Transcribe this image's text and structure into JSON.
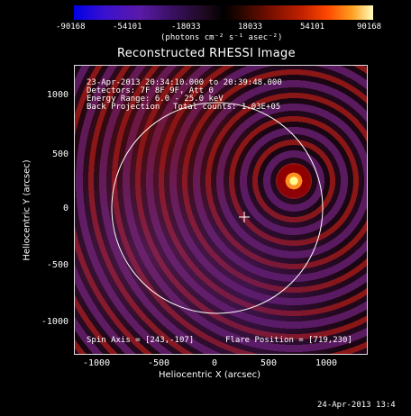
{
  "colorbar": {
    "ticks": [
      "-90168",
      "-54101",
      "-18033",
      "18033",
      "54101",
      "90168"
    ],
    "units": "(photons cm⁻² s⁻¹ asec⁻²)"
  },
  "plot": {
    "title": "Reconstructed RHESSI Image",
    "info": {
      "time": "23-Apr-2013 20:34:10.000 to 20:39:48.000",
      "detectors": "Detectors: 7F 8F 9F, Att 0",
      "energy": "Energy Range: 6.0 - 25.0 keV",
      "method": "Back Projection",
      "counts": "Total counts: 1.03E+05"
    },
    "spin_axis": "Spin Axis = [243,-107]",
    "flare_position": "Flare Position = [719,230]",
    "x_label": "Heliocentric X (arcsec)",
    "y_label": "Heliocentric Y (arcsec)",
    "x_ticks": [
      "-1000",
      "-500",
      "0",
      "500",
      "1000"
    ],
    "y_ticks": [
      "1000",
      "500",
      "0",
      "-500",
      "-1000"
    ]
  },
  "footer": {
    "timestamp": "24-Apr-2013 13:4"
  }
}
